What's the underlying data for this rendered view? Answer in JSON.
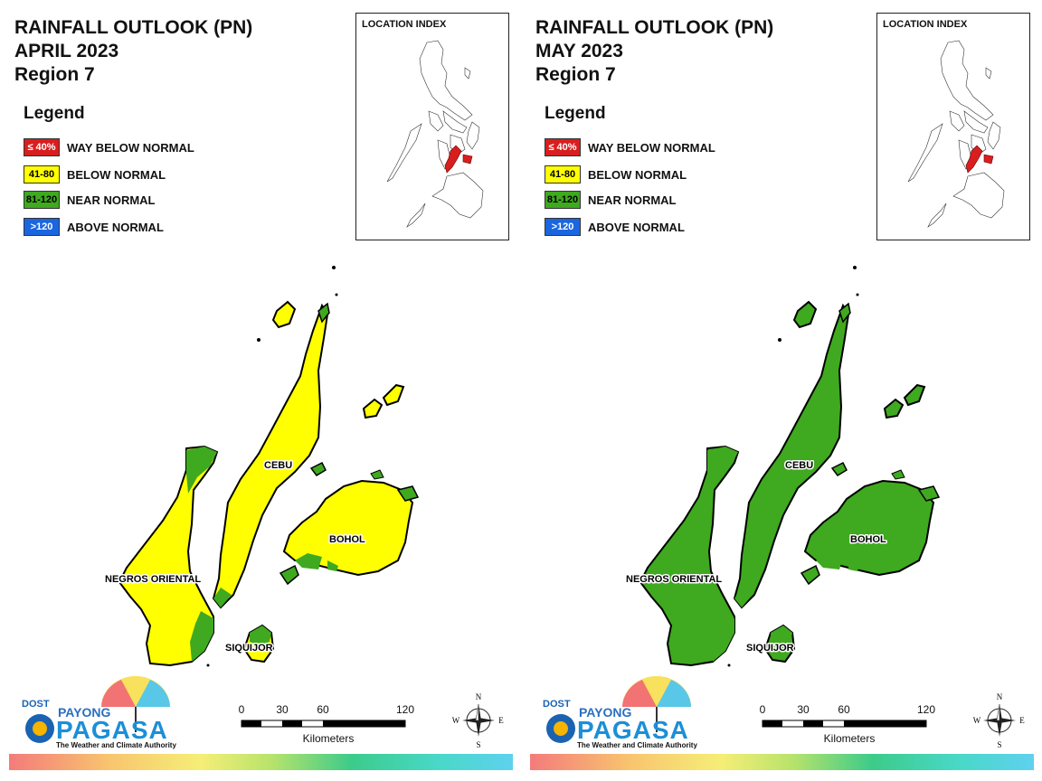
{
  "panels": [
    {
      "title": [
        "RAINFALL OUTLOOK (PN)",
        "APRIL 2023",
        "Region 7"
      ],
      "colors": {
        "cebu": "#ffff00",
        "negros": "#ffff00",
        "bohol": "#ffff00",
        "siquijor": "#ffff00",
        "islets": "#3fa91f",
        "patch": "#3fa91f"
      }
    },
    {
      "title": [
        "RAINFALL OUTLOOK (PN)",
        "MAY 2023",
        "Region 7"
      ],
      "colors": {
        "cebu": "#3fa91f",
        "negros": "#3fa91f",
        "bohol": "#3fa91f",
        "siquijor": "#3fa91f",
        "islets": "#3fa91f",
        "patch": "#3fa91f"
      }
    }
  ],
  "legend": {
    "title": "Legend",
    "items": [
      {
        "range": "≤ 40%",
        "label": "WAY BELOW NORMAL",
        "color": "#d81e1e",
        "text_color": "#ffffff"
      },
      {
        "range": "41-80",
        "label": "BELOW NORMAL",
        "color": "#ffff00",
        "text_color": "#000000"
      },
      {
        "range": "81-120",
        "label": "NEAR NORMAL",
        "color": "#3fa91f",
        "text_color": "#000000"
      },
      {
        "range": ">120",
        "label": "ABOVE NORMAL",
        "color": "#1a66e0",
        "text_color": "#ffffff"
      }
    ]
  },
  "location_index": {
    "title": "LOCATION INDEX",
    "highlight_color": "#d81e1e"
  },
  "places": {
    "cebu": "CEBU",
    "bohol": "BOHOL",
    "negros": "NEGROS ORIENTAL",
    "siquijor": "SIQUIJOR"
  },
  "logo": {
    "dost": "DOST",
    "payong": "PAYONG",
    "pagasa": "PAGASA",
    "tagline": "The Weather and Climate Authority"
  },
  "scale_bar": {
    "ticks": [
      "0",
      "30",
      "60",
      "120"
    ],
    "unit": "Kilometers"
  },
  "compass": {
    "n": "N",
    "s": "S",
    "e": "E",
    "w": "W"
  }
}
